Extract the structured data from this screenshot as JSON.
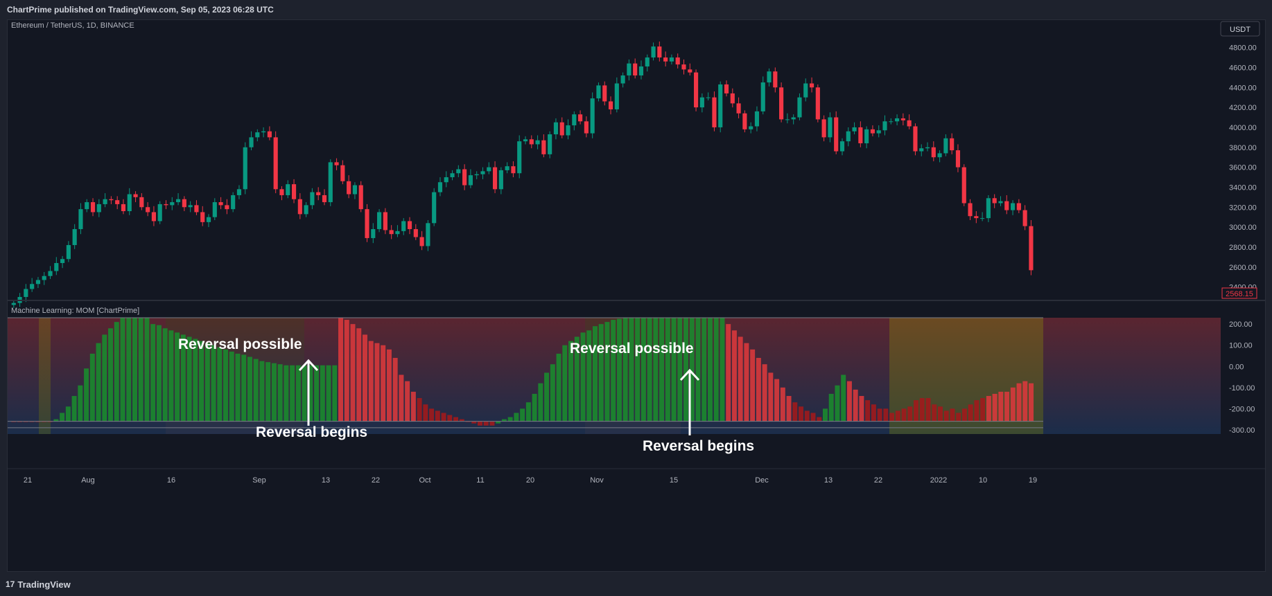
{
  "header": {
    "published": "ChartPrime published on TradingView.com, Sep 05, 2023 06:28 UTC"
  },
  "footer": {
    "logo_text": "TradingView",
    "logo_mark": "17"
  },
  "colors": {
    "up": "#089981",
    "down": "#f23645",
    "osc_up": "#1b8a2e",
    "osc_down_light": "#d8393c",
    "osc_down_dark": "#a11a1c",
    "bg": "#131722",
    "text": "#b2b5be"
  },
  "chart_data": [
    {
      "type": "candlestick",
      "title": "Ethereum / TetherUS, 1D, BINANCE",
      "currency_button": "USDT",
      "last_price": "2568.15",
      "ylim": [
        2300,
        4950
      ],
      "y_ticks": [
        "4800.00",
        "4600.00",
        "4400.00",
        "4200.00",
        "4000.00",
        "3800.00",
        "3600.00",
        "3400.00",
        "3200.00",
        "3000.00",
        "2800.00",
        "2600.00",
        "2400.00"
      ],
      "x_tick_labels": [
        "21",
        "Aug",
        "16",
        "Sep",
        "13",
        "22",
        "Oct",
        "11",
        "20",
        "Nov",
        "15",
        "Dec",
        "13",
        "22",
        "2022",
        "10",
        "19"
      ],
      "close_values": [
        2240,
        2300,
        2380,
        2430,
        2470,
        2510,
        2560,
        2640,
        2680,
        2820,
        2980,
        3180,
        3250,
        3150,
        3230,
        3280,
        3270,
        3230,
        3160,
        3330,
        3300,
        3200,
        3150,
        3060,
        3230,
        3220,
        3250,
        3280,
        3200,
        3220,
        3150,
        3050,
        3100,
        3250,
        3220,
        3180,
        3320,
        3380,
        3800,
        3900,
        3950,
        3960,
        3900,
        3380,
        3320,
        3430,
        3280,
        3130,
        3220,
        3350,
        3320,
        3250,
        3650,
        3620,
        3460,
        3330,
        3420,
        3180,
        2890,
        2980,
        3150,
        2970,
        2930,
        2960,
        3060,
        2980,
        2900,
        2810,
        3040,
        3350,
        3450,
        3500,
        3540,
        3580,
        3420,
        3520,
        3530,
        3560,
        3600,
        3380,
        3570,
        3610,
        3540,
        3860,
        3880,
        3830,
        3870,
        3730,
        3930,
        4050,
        3920,
        4020,
        4130,
        4060,
        3940,
        4290,
        4420,
        4260,
        4180,
        4440,
        4520,
        4640,
        4520,
        4610,
        4700,
        4810,
        4700,
        4660,
        4700,
        4630,
        4580,
        4550,
        4200,
        4300,
        4300,
        4000,
        4430,
        4340,
        4240,
        4140,
        3980,
        4010,
        4160,
        4450,
        4560,
        4400,
        4080,
        4080,
        4100,
        4300,
        4440,
        4400,
        4080,
        3900,
        4100,
        3760,
        3860,
        3960,
        4000,
        3840,
        3980,
        3940,
        3970,
        4060,
        4060,
        4090,
        4070,
        4010,
        3760,
        3790,
        3800,
        3700,
        3740,
        3890,
        3770,
        3600,
        3240,
        3110,
        3090,
        3090,
        3290,
        3240,
        3260,
        3170,
        3240,
        3170,
        3010,
        2568.15
      ]
    },
    {
      "type": "bar",
      "title": "Machine Learning: MOM [ChartPrime]",
      "ylim": [
        -320,
        230
      ],
      "y_ticks": [
        "200.00",
        "100.00",
        "0.00",
        "-100.00",
        "-200.00",
        "-300.00"
      ],
      "annotations": {
        "possible": "Reversal possible",
        "begins": "Reversal begins"
      },
      "values": [
        -260,
        -260,
        -260,
        -260,
        -260,
        -260,
        -260,
        -250,
        -220,
        -190,
        -140,
        -90,
        -10,
        60,
        110,
        150,
        180,
        210,
        230,
        230,
        230,
        230,
        230,
        200,
        195,
        180,
        170,
        160,
        150,
        140,
        130,
        120,
        110,
        100,
        90,
        80,
        70,
        60,
        55,
        45,
        35,
        25,
        20,
        15,
        10,
        5,
        5,
        5,
        5,
        5,
        5,
        5,
        5,
        5,
        230,
        220,
        200,
        180,
        150,
        120,
        110,
        100,
        80,
        40,
        -40,
        -70,
        -120,
        -150,
        -180,
        -200,
        -210,
        -220,
        -230,
        -240,
        -250,
        -260,
        -270,
        -280,
        -280,
        -280,
        -270,
        -250,
        -240,
        -220,
        -200,
        -170,
        -130,
        -80,
        -30,
        10,
        60,
        100,
        120,
        140,
        160,
        170,
        190,
        200,
        210,
        220,
        225,
        230,
        230,
        230,
        230,
        230,
        230,
        230,
        230,
        230,
        230,
        230,
        230,
        230,
        230,
        230,
        230,
        230,
        200,
        170,
        140,
        110,
        80,
        40,
        10,
        -30,
        -60,
        -100,
        -140,
        -170,
        -190,
        -210,
        -220,
        -240,
        -200,
        -130,
        -90,
        -40,
        -70,
        -110,
        -140,
        -160,
        -180,
        -200,
        -200,
        -220,
        -210,
        -200,
        -190,
        -160,
        -150,
        -150,
        -180,
        -190,
        -210,
        -200,
        -220,
        -200,
        -180,
        -160,
        -150,
        -140,
        -130,
        -120,
        -120,
        -100,
        -80,
        -70,
        -80
      ],
      "sign": [
        0,
        0,
        0,
        0,
        0,
        0,
        0,
        1,
        1,
        1,
        1,
        1,
        1,
        1,
        1,
        1,
        1,
        1,
        1,
        1,
        1,
        1,
        1,
        1,
        1,
        1,
        1,
        1,
        1,
        1,
        1,
        1,
        1,
        1,
        1,
        1,
        1,
        1,
        1,
        1,
        1,
        1,
        1,
        1,
        1,
        1,
        1,
        1,
        1,
        1,
        1,
        1,
        1,
        1,
        0,
        0,
        0,
        0,
        0,
        0,
        0,
        0,
        0,
        0,
        0,
        0,
        0,
        0,
        0,
        0,
        0,
        0,
        0,
        0,
        0,
        0,
        0,
        0,
        0,
        0,
        1,
        1,
        1,
        1,
        1,
        1,
        1,
        1,
        1,
        1,
        1,
        1,
        1,
        1,
        1,
        1,
        1,
        1,
        1,
        1,
        1,
        1,
        1,
        1,
        1,
        1,
        1,
        1,
        1,
        1,
        1,
        1,
        1,
        1,
        1,
        1,
        1,
        1,
        0,
        0,
        0,
        0,
        0,
        0,
        0,
        0,
        0,
        0,
        0,
        0,
        0,
        0,
        0,
        0,
        1,
        1,
        1,
        1,
        0,
        0,
        0,
        0,
        0,
        0,
        0,
        0,
        0,
        0,
        0,
        0,
        0,
        0,
        0,
        0,
        0,
        0,
        0,
        0,
        0,
        0,
        0,
        0,
        0,
        0,
        0,
        0,
        0,
        0,
        0
      ]
    }
  ]
}
